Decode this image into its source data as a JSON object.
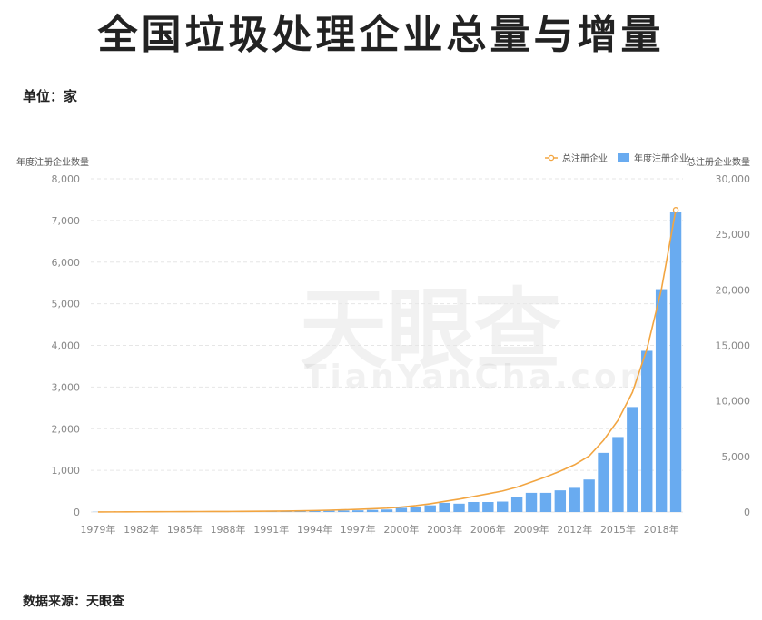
{
  "header": {
    "title": "全国垃圾处理企业总量与增量"
  },
  "unit_label": "单位：家",
  "source_label": "数据来源：天眼查",
  "watermark": {
    "brand": "天眼查",
    "domain": "TianYanCha.com"
  },
  "colors": {
    "bar": "#69abf0",
    "line": "#f2a541",
    "grid": "#e6e6e6",
    "axis_text": "#888888"
  },
  "chart_data": {
    "type": "bar",
    "title": "",
    "y_left_label": "年度注册企业数量",
    "y_right_label": "总注册企业数量",
    "legend_position": "top-right",
    "grid": true,
    "ylim_left": [
      0,
      8000
    ],
    "ylim_right": [
      0,
      30000
    ],
    "y_left_ticks": [
      "8,000",
      "7,000",
      "6,000",
      "5,000",
      "4,000",
      "3,000",
      "2,000",
      "1,000",
      "0"
    ],
    "y_right_ticks": [
      "30,000",
      "25,000",
      "20,000",
      "15,000",
      "10,000",
      "5,000",
      "0"
    ],
    "x_tick_labels": [
      "1979年",
      "1982年",
      "1985年",
      "1988年",
      "1991年",
      "1994年",
      "1997年",
      "2000年",
      "2003年",
      "2006年",
      "2009年",
      "2012年",
      "2015年",
      "2018年"
    ],
    "categories": [
      "1979",
      "1980",
      "1981",
      "1982",
      "1983",
      "1984",
      "1985",
      "1986",
      "1987",
      "1988",
      "1989",
      "1990",
      "1991",
      "1992",
      "1993",
      "1994",
      "1995",
      "1996",
      "1997",
      "1998",
      "1999",
      "2000",
      "2001",
      "2002",
      "2003",
      "2004",
      "2005",
      "2006",
      "2007",
      "2008",
      "2009",
      "2010",
      "2011",
      "2012",
      "2013",
      "2014",
      "2015",
      "2016",
      "2017",
      "2018",
      "2019"
    ],
    "series": [
      {
        "name": "年度注册企业",
        "type": "bar",
        "axis": "left",
        "values": [
          5,
          5,
          5,
          5,
          5,
          5,
          5,
          5,
          5,
          5,
          5,
          8,
          10,
          15,
          20,
          25,
          30,
          35,
          40,
          50,
          60,
          100,
          130,
          160,
          220,
          200,
          240,
          240,
          250,
          350,
          460,
          460,
          520,
          580,
          780,
          1420,
          1800,
          2520,
          3870,
          5350,
          7200
        ]
      },
      {
        "name": "总注册企业",
        "type": "line",
        "axis": "right",
        "values": [
          5,
          10,
          15,
          20,
          25,
          30,
          35,
          40,
          45,
          50,
          55,
          63,
          73,
          88,
          108,
          133,
          163,
          198,
          238,
          288,
          348,
          448,
          578,
          738,
          958,
          1158,
          1398,
          1638,
          1888,
          2238,
          2698,
          3158,
          3678,
          4258,
          5038,
          6458,
          8258,
          10778,
          14648,
          19998,
          27198
        ]
      }
    ]
  }
}
